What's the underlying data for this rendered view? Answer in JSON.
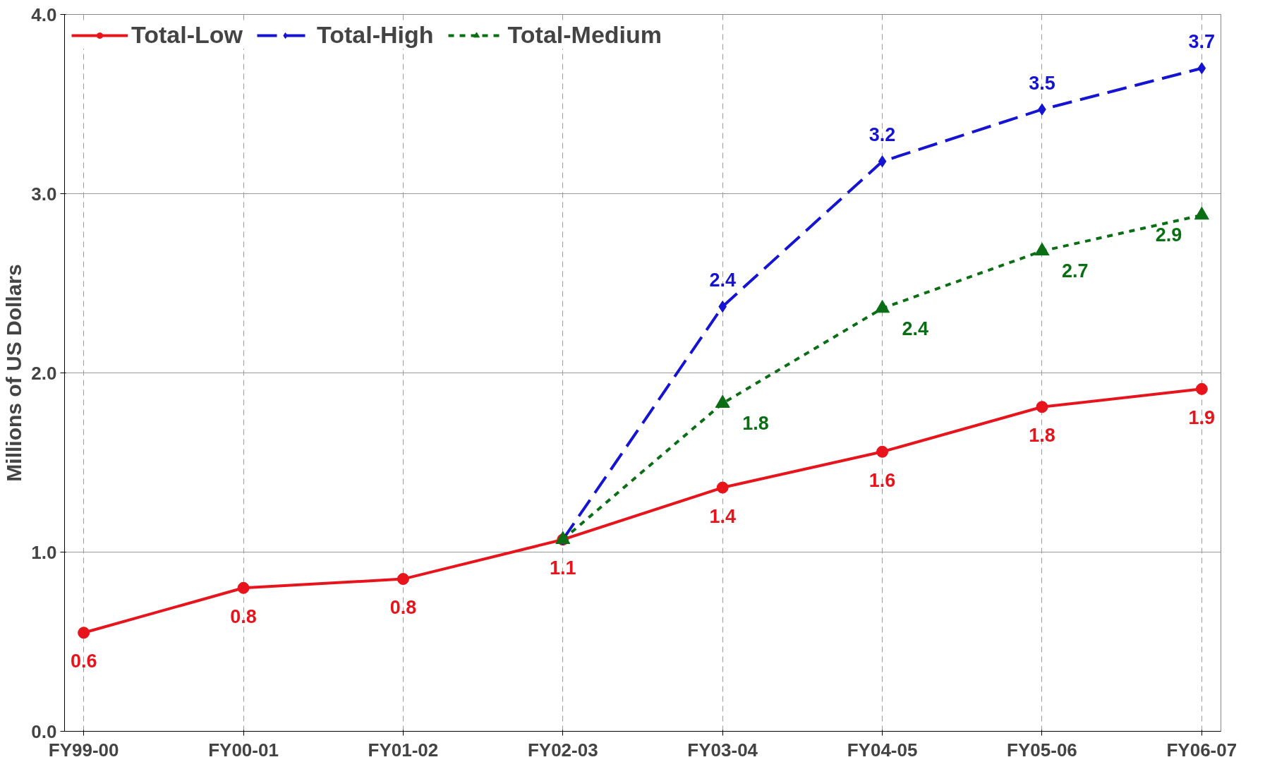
{
  "chart_data": {
    "type": "line",
    "ylabel": "Millions of US Dollars",
    "categories": [
      "FY99-00",
      "FY00-01",
      "FY01-02",
      "FY02-03",
      "FY03-04",
      "FY04-05",
      "FY05-06",
      "FY06-07"
    ],
    "ylim": [
      0,
      4
    ],
    "yticks": [
      {
        "value": 0,
        "label": "0.0"
      },
      {
        "value": 1,
        "label": "1.0"
      },
      {
        "value": 2,
        "label": "2.0"
      },
      {
        "value": 3,
        "label": "3.0"
      },
      {
        "value": 4,
        "label": "4.0"
      }
    ],
    "grid": true,
    "legend": "top left",
    "series": [
      {
        "name": "Total-Low",
        "color": "#e8141c",
        "marker": "circle",
        "line_style": "solid",
        "values": [
          0.55,
          0.8,
          0.85,
          1.07,
          1.36,
          1.56,
          1.81,
          1.91
        ],
        "value_labels": [
          "0.6",
          "0.8",
          "0.8",
          "1.1",
          "1.4",
          "1.6",
          "1.8",
          "1.9"
        ]
      },
      {
        "name": "Total-High",
        "color": "#1414d2",
        "marker": "diamond",
        "line_style": "dashed",
        "values": [
          null,
          null,
          null,
          1.07,
          2.37,
          3.18,
          3.47,
          3.7
        ],
        "value_labels": [
          null,
          null,
          null,
          null,
          "2.4",
          "3.2",
          "3.5",
          "3.7"
        ]
      },
      {
        "name": "Total-Medium",
        "color": "#0a6e14",
        "marker": "triangle",
        "line_style": "dotted",
        "values": [
          null,
          null,
          null,
          1.07,
          1.83,
          2.36,
          2.68,
          2.88
        ],
        "value_labels": [
          null,
          null,
          null,
          null,
          "1.8",
          "2.4",
          "2.7",
          "2.9"
        ]
      }
    ]
  }
}
